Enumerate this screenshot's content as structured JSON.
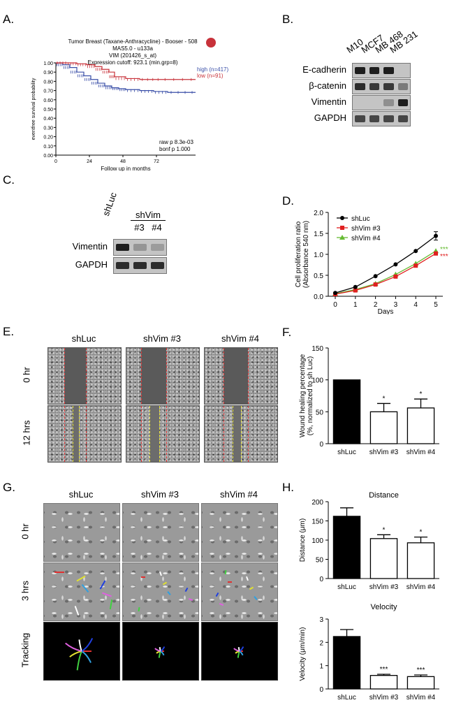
{
  "panels": {
    "A": "A.",
    "B": "B.",
    "C": "C.",
    "D": "D.",
    "E": "E.",
    "F": "F.",
    "G": "G.",
    "H": "H."
  },
  "panel_a": {
    "title_lines": [
      "Tumor Breast (Taxane-Anthracycline) - Booser - 508",
      "MAS5.0 - u133a",
      "VIM (201426_s_at)",
      "Expression cutoff: 923.1 (min.grp=8)"
    ],
    "legend_high": "high (n=417)",
    "legend_low": "low (n=91)",
    "stats": [
      "raw p 8.3e-03",
      "bonf p 1.000"
    ],
    "colors": {
      "high": "#3a4fa8",
      "low": "#c8323a"
    }
  },
  "panel_b": {
    "lanes": [
      "M10",
      "MCF7",
      "MB 468",
      "MB 231"
    ],
    "rows": [
      {
        "label": "E-cadherin",
        "intensity": [
          1.0,
          1.0,
          1.0,
          0
        ]
      },
      {
        "label": "β-catenin",
        "intensity": [
          0.9,
          0.8,
          0.8,
          0.3
        ]
      },
      {
        "label": "Vimentin",
        "intensity": [
          0,
          0,
          0.15,
          1.0
        ]
      },
      {
        "label": "GAPDH",
        "intensity": [
          0.7,
          0.7,
          0.7,
          0.7
        ]
      }
    ]
  },
  "panel_c": {
    "lane_main": "shLuc",
    "group": "shVim",
    "sublanes": [
      "#3",
      "#4"
    ],
    "rows": [
      {
        "label": "Vimentin",
        "intensity": [
          1.0,
          0.1,
          0.05
        ]
      },
      {
        "label": "GAPDH",
        "intensity": [
          0.9,
          0.9,
          0.9
        ]
      }
    ]
  },
  "panel_e": {
    "cols": [
      "shLuc",
      "shVim #3",
      "shVim #4"
    ],
    "rows": [
      "0 hr",
      "12 hrs"
    ]
  },
  "panel_g": {
    "cols": [
      "shLuc",
      "shVim #3",
      "shVim #4"
    ],
    "rows": [
      "0 hr",
      "3 hrs",
      "Tracking"
    ]
  },
  "chart_data": [
    {
      "id": "A",
      "type": "line",
      "xlabel": "Follow up in months",
      "ylabel": "eventfree survival probability",
      "xticks": [
        0,
        24,
        48,
        72
      ],
      "xlim": [
        0,
        100
      ],
      "yticks": [
        0.0,
        0.1,
        0.2,
        0.3,
        0.4,
        0.5,
        0.6,
        0.7,
        0.8,
        0.9,
        1.0
      ],
      "ylim": [
        0,
        1
      ],
      "series": [
        {
          "name": "high (n=417)",
          "x": [
            0,
            5,
            10,
            15,
            20,
            25,
            30,
            35,
            40,
            45,
            50,
            60,
            70,
            80,
            100
          ],
          "y": [
            1.0,
            0.98,
            0.95,
            0.9,
            0.86,
            0.82,
            0.78,
            0.75,
            0.73,
            0.72,
            0.71,
            0.7,
            0.69,
            0.68,
            0.68
          ]
        },
        {
          "name": "low (n=91)",
          "x": [
            0,
            8,
            15,
            22,
            28,
            33,
            38,
            42,
            50,
            60,
            75,
            100
          ],
          "y": [
            1.0,
            1.0,
            0.99,
            0.98,
            0.96,
            0.93,
            0.9,
            0.85,
            0.83,
            0.82,
            0.82,
            0.82
          ]
        }
      ]
    },
    {
      "id": "D",
      "type": "line",
      "xlabel": "Days",
      "ylabel": "Cell proliferation ratio (Absorbance 540 nm)",
      "ylabel_lines": [
        "Cell proliferation ratio",
        "(Absorbance 540 nm)"
      ],
      "x": [
        0,
        1,
        2,
        3,
        4,
        5
      ],
      "xticks": [
        0,
        1,
        2,
        3,
        4,
        5
      ],
      "yticks": [
        0.0,
        0.5,
        1.0,
        1.5,
        2.0
      ],
      "ylim": [
        0,
        2.0
      ],
      "series": [
        {
          "name": "shLuc",
          "color": "#000000",
          "marker": "circle",
          "values": [
            0.08,
            0.22,
            0.48,
            0.76,
            1.08,
            1.44
          ]
        },
        {
          "name": "shVim #3",
          "color": "#e02020",
          "marker": "square",
          "values": [
            0.05,
            0.14,
            0.28,
            0.47,
            0.73,
            1.02
          ]
        },
        {
          "name": "shVim #4",
          "color": "#66bb33",
          "marker": "triangle",
          "values": [
            0.06,
            0.16,
            0.3,
            0.52,
            0.78,
            1.08
          ]
        }
      ],
      "annotations": [
        {
          "text": "***",
          "color": "#66bb33"
        },
        {
          "text": "***",
          "color": "#e02020"
        }
      ]
    },
    {
      "id": "F",
      "type": "bar",
      "ylabel": "Wound healing percentage",
      "ylabel_lines": [
        "Wound healing percentage",
        "(%, normalized to sh Luc)"
      ],
      "categories": [
        "shLuc",
        "shVim #3",
        "shVim #4"
      ],
      "values": [
        100,
        50,
        56
      ],
      "errors": [
        0,
        13,
        14
      ],
      "sig": [
        "",
        "*",
        "*"
      ],
      "yticks": [
        0,
        50,
        100,
        150
      ],
      "ylim": [
        0,
        150
      ]
    },
    {
      "id": "H1",
      "type": "bar",
      "title": "Distance",
      "ylabel": "Distance (μm)",
      "categories": [
        "shLuc",
        "shVim #3",
        "shVim #4"
      ],
      "values": [
        162,
        104,
        93
      ],
      "errors": [
        22,
        10,
        15
      ],
      "sig": [
        "",
        "*",
        "*"
      ],
      "yticks": [
        0,
        50,
        100,
        150,
        200
      ],
      "ylim": [
        0,
        200
      ]
    },
    {
      "id": "H2",
      "type": "bar",
      "title": "Velocity",
      "ylabel": "Velocity (μm/min)",
      "categories": [
        "shLuc",
        "shVim #3",
        "shVim #4"
      ],
      "values": [
        2.25,
        0.58,
        0.53
      ],
      "errors": [
        0.3,
        0.05,
        0.07
      ],
      "sig": [
        "",
        "***",
        "***"
      ],
      "yticks": [
        0,
        1,
        2,
        3
      ],
      "ylim": [
        0,
        3
      ]
    }
  ]
}
